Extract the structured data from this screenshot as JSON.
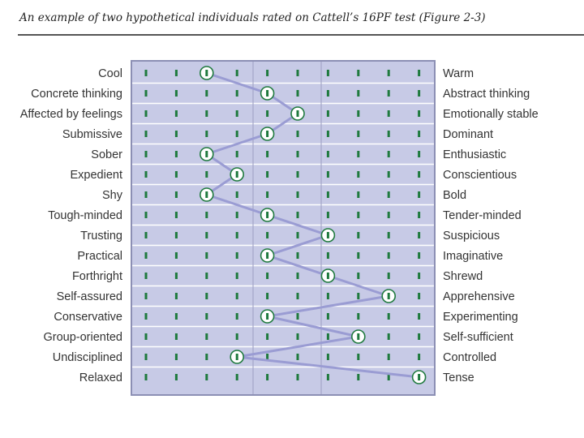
{
  "page": {
    "title": "An example of two hypothetical individuals rated on Cattell’s 16PF test (Figure 2-3)"
  },
  "chart_data": {
    "type": "line",
    "scale_points": 10,
    "xlim": [
      1,
      10
    ],
    "left_labels": [
      "Cool",
      "Concrete thinking",
      "Affected by feelings",
      "Submissive",
      "Sober",
      "Expedient",
      "Shy",
      "Tough-minded",
      "Trusting",
      "Practical",
      "Forthright",
      "Self-assured",
      "Conservative",
      "Group-oriented",
      "Undisciplined",
      "Relaxed"
    ],
    "right_labels": [
      "Warm",
      "Abstract thinking",
      "Emotionally stable",
      "Dominant",
      "Enthusiastic",
      "Conscientious",
      "Bold",
      "Tender-minded",
      "Suspicious",
      "Imaginative",
      "Shrewd",
      "Apprehensive",
      "Experimenting",
      "Self-sufficient",
      "Controlled",
      "Tense"
    ],
    "values": [
      3,
      5,
      6,
      5,
      3,
      4,
      3,
      5,
      7,
      5,
      7,
      9,
      5,
      8,
      4,
      10
    ],
    "grid": true,
    "colors": {
      "panel": "#c7cae6",
      "border": "#8c8fb4",
      "row_line": "#ffffff",
      "column_divider": "#a4a7c8",
      "tick": "#1f7a3e",
      "line": "#9a9cd3",
      "marker_ring": "#1f7a3e",
      "marker_fill": "#ffffff"
    }
  }
}
